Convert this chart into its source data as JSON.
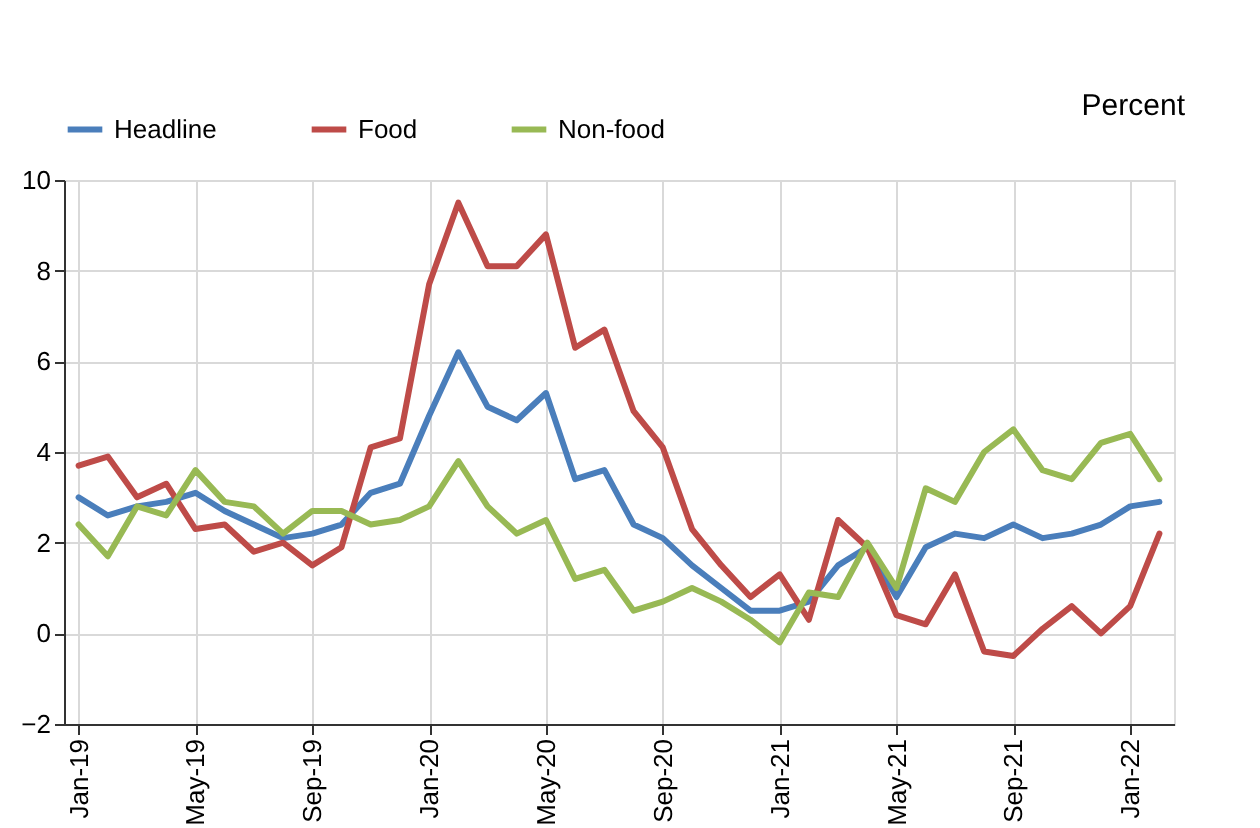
{
  "chart_data": {
    "type": "line",
    "ylabel": "Percent",
    "categories": [
      "Jan-19",
      null,
      null,
      null,
      "May-19",
      null,
      null,
      null,
      "Sep-19",
      null,
      null,
      null,
      "Jan-20",
      null,
      null,
      null,
      "May-20",
      null,
      null,
      null,
      "Sep-20",
      null,
      null,
      null,
      "Jan-21",
      null,
      null,
      null,
      "May-21",
      null,
      null,
      null,
      "Sep-21",
      null,
      null,
      null,
      "Jan-22",
      null
    ],
    "series": [
      {
        "name": "Headline",
        "color": "#4a7ebb",
        "values": [
          3.0,
          2.6,
          2.8,
          2.9,
          3.1,
          2.7,
          2.4,
          2.1,
          2.2,
          2.4,
          3.1,
          3.3,
          4.8,
          6.2,
          5.0,
          4.7,
          5.3,
          3.4,
          3.6,
          2.4,
          2.1,
          1.5,
          1.0,
          0.5,
          0.5,
          0.7,
          1.5,
          1.9,
          0.8,
          1.9,
          2.2,
          2.1,
          2.4,
          2.1,
          2.2,
          2.4,
          2.8,
          2.9
        ]
      },
      {
        "name": "Food",
        "color": "#be4b48",
        "values": [
          3.7,
          3.9,
          3.0,
          3.3,
          2.3,
          2.4,
          1.8,
          2.0,
          1.5,
          1.9,
          4.1,
          4.3,
          7.7,
          9.5,
          8.1,
          8.1,
          8.8,
          6.3,
          6.7,
          4.9,
          4.1,
          2.3,
          1.5,
          0.8,
          1.3,
          0.3,
          2.5,
          1.9,
          0.4,
          0.2,
          1.3,
          -0.4,
          -0.5,
          0.1,
          0.6,
          0.0,
          0.6,
          2.2
        ]
      },
      {
        "name": "Non-food",
        "color": "#98b954",
        "values": [
          2.4,
          1.7,
          2.8,
          2.6,
          3.6,
          2.9,
          2.8,
          2.2,
          2.7,
          2.7,
          2.4,
          2.5,
          2.8,
          3.8,
          2.8,
          2.2,
          2.5,
          1.2,
          1.4,
          0.5,
          0.7,
          1.0,
          0.7,
          0.3,
          -0.2,
          0.9,
          0.8,
          2.0,
          1.0,
          3.2,
          2.9,
          4.0,
          4.5,
          3.6,
          3.4,
          4.2,
          4.4,
          3.4
        ]
      }
    ],
    "ylim": [
      -2,
      10
    ],
    "yticks": [
      -2,
      0,
      2,
      4,
      6,
      8,
      10
    ],
    "grid": true,
    "legend": "top",
    "line_style": "solid",
    "marker": "none"
  }
}
